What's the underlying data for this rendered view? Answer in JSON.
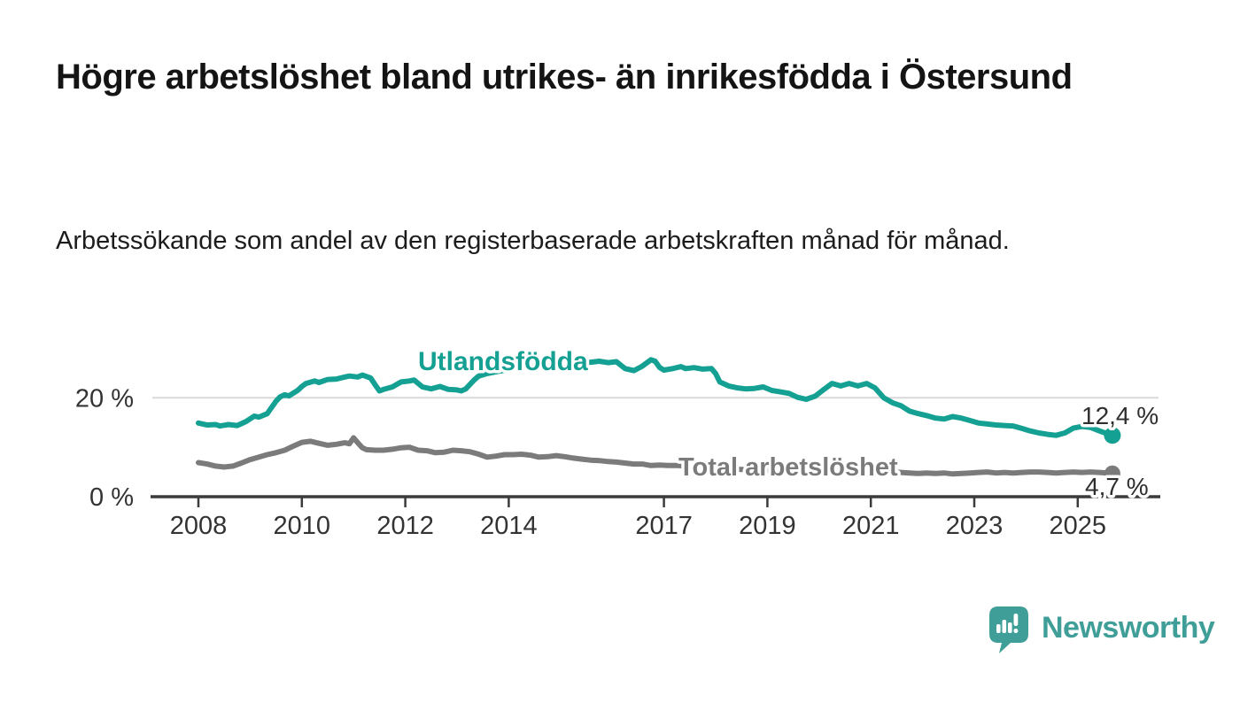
{
  "header": {
    "title": "Högre arbetslöshet bland utrikes- än inrikesfödda i Östersund",
    "subtitle": "Arbetssökande som andel av den registerbaserade arbetskraften månad för månad."
  },
  "branding": {
    "name": "Newsworthy",
    "color": "#3f9e98",
    "icon": "speech-bubble-bar-chart"
  },
  "colors": {
    "series_foreign_born": "#14a092",
    "series_total": "#7b7b7b",
    "axis": "#3b3b3b",
    "grid": "#d9d9d9",
    "tick_label": "#333333",
    "end_label": "#2e2e2e"
  },
  "chart_data": {
    "type": "line",
    "title": "Högre arbetslöshet bland utrikes- än inrikesfödda i Östersund",
    "subtitle": "Arbetssökande som andel av den registerbaserade arbetskraften månad för månad.",
    "unit": "%",
    "grid": "single horizontal gridline at 20 %",
    "legend_position": "inline labels on lines",
    "x_ticks": [
      2008,
      2010,
      2012,
      2014,
      2017,
      2019,
      2021,
      2023,
      2025
    ],
    "x_range": [
      2008.0,
      2025.67
    ],
    "y_ticks": [
      {
        "value": 0,
        "label": "0 %"
      },
      {
        "value": 20,
        "label": "20 %"
      }
    ],
    "y_range": [
      0,
      30
    ],
    "series": [
      {
        "name": "Utlandsfödda",
        "color": "#14a092",
        "end_value": 12.4,
        "end_label": "12,4 %",
        "points": [
          [
            2008.0,
            14.9
          ],
          [
            2008.17,
            14.5
          ],
          [
            2008.33,
            14.6
          ],
          [
            2008.42,
            14.3
          ],
          [
            2008.58,
            14.6
          ],
          [
            2008.75,
            14.4
          ],
          [
            2008.92,
            15.2
          ],
          [
            2009.08,
            16.3
          ],
          [
            2009.17,
            16.1
          ],
          [
            2009.33,
            16.8
          ],
          [
            2009.5,
            19.3
          ],
          [
            2009.58,
            20.2
          ],
          [
            2009.67,
            20.6
          ],
          [
            2009.75,
            20.4
          ],
          [
            2009.92,
            21.5
          ],
          [
            2010.0,
            22.3
          ],
          [
            2010.08,
            22.9
          ],
          [
            2010.25,
            23.4
          ],
          [
            2010.33,
            23.1
          ],
          [
            2010.5,
            23.7
          ],
          [
            2010.67,
            23.8
          ],
          [
            2010.83,
            24.2
          ],
          [
            2010.92,
            24.4
          ],
          [
            2011.08,
            24.2
          ],
          [
            2011.17,
            24.6
          ],
          [
            2011.33,
            24.0
          ],
          [
            2011.42,
            22.6
          ],
          [
            2011.5,
            21.4
          ],
          [
            2011.58,
            21.7
          ],
          [
            2011.75,
            22.2
          ],
          [
            2011.92,
            23.2
          ],
          [
            2012.08,
            23.4
          ],
          [
            2012.17,
            23.6
          ],
          [
            2012.33,
            22.2
          ],
          [
            2012.5,
            21.8
          ],
          [
            2012.67,
            22.3
          ],
          [
            2012.83,
            21.7
          ],
          [
            2013.0,
            21.6
          ],
          [
            2013.08,
            21.4
          ],
          [
            2013.17,
            21.8
          ],
          [
            2013.33,
            23.6
          ],
          [
            2013.42,
            24.4
          ],
          [
            2013.58,
            24.9
          ],
          [
            2013.83,
            25.4
          ],
          [
            2014.08,
            25.9
          ],
          [
            2014.33,
            26.2
          ],
          [
            2014.58,
            26.5
          ],
          [
            2014.83,
            26.7
          ],
          [
            2015.08,
            26.9
          ],
          [
            2015.33,
            27.0
          ],
          [
            2015.58,
            27.2
          ],
          [
            2015.75,
            27.4
          ],
          [
            2015.92,
            27.1
          ],
          [
            2016.08,
            27.3
          ],
          [
            2016.25,
            25.9
          ],
          [
            2016.42,
            25.5
          ],
          [
            2016.58,
            26.4
          ],
          [
            2016.75,
            27.7
          ],
          [
            2016.83,
            27.4
          ],
          [
            2016.92,
            26.1
          ],
          [
            2017.0,
            25.6
          ],
          [
            2017.17,
            25.9
          ],
          [
            2017.33,
            26.3
          ],
          [
            2017.42,
            25.9
          ],
          [
            2017.58,
            26.1
          ],
          [
            2017.75,
            25.8
          ],
          [
            2017.92,
            25.9
          ],
          [
            2018.0,
            24.9
          ],
          [
            2018.08,
            23.2
          ],
          [
            2018.25,
            22.4
          ],
          [
            2018.42,
            22.0
          ],
          [
            2018.58,
            21.8
          ],
          [
            2018.75,
            21.9
          ],
          [
            2018.92,
            22.2
          ],
          [
            2019.08,
            21.5
          ],
          [
            2019.25,
            21.2
          ],
          [
            2019.42,
            20.9
          ],
          [
            2019.58,
            20.1
          ],
          [
            2019.75,
            19.7
          ],
          [
            2019.92,
            20.3
          ],
          [
            2020.08,
            21.6
          ],
          [
            2020.25,
            22.9
          ],
          [
            2020.42,
            22.4
          ],
          [
            2020.58,
            22.9
          ],
          [
            2020.75,
            22.4
          ],
          [
            2020.92,
            22.9
          ],
          [
            2021.08,
            22.0
          ],
          [
            2021.25,
            20.0
          ],
          [
            2021.42,
            19.0
          ],
          [
            2021.58,
            18.4
          ],
          [
            2021.75,
            17.3
          ],
          [
            2021.92,
            16.8
          ],
          [
            2022.08,
            16.4
          ],
          [
            2022.25,
            15.9
          ],
          [
            2022.42,
            15.7
          ],
          [
            2022.58,
            16.2
          ],
          [
            2022.75,
            15.9
          ],
          [
            2022.92,
            15.4
          ],
          [
            2023.08,
            14.9
          ],
          [
            2023.25,
            14.7
          ],
          [
            2023.42,
            14.5
          ],
          [
            2023.58,
            14.4
          ],
          [
            2023.75,
            14.3
          ],
          [
            2023.92,
            13.8
          ],
          [
            2024.08,
            13.3
          ],
          [
            2024.25,
            12.9
          ],
          [
            2024.42,
            12.6
          ],
          [
            2024.58,
            12.4
          ],
          [
            2024.75,
            12.9
          ],
          [
            2024.92,
            13.9
          ],
          [
            2025.08,
            14.2
          ],
          [
            2025.25,
            14.0
          ],
          [
            2025.42,
            13.3
          ],
          [
            2025.58,
            12.7
          ],
          [
            2025.67,
            12.4
          ]
        ]
      },
      {
        "name": "Total arbetslöshet",
        "color": "#7b7b7b",
        "end_value": 4.7,
        "end_label": "4,7 %",
        "points": [
          [
            2008.0,
            6.9
          ],
          [
            2008.17,
            6.6
          ],
          [
            2008.33,
            6.2
          ],
          [
            2008.5,
            6.0
          ],
          [
            2008.67,
            6.2
          ],
          [
            2008.83,
            6.8
          ],
          [
            2009.0,
            7.5
          ],
          [
            2009.17,
            8.0
          ],
          [
            2009.33,
            8.5
          ],
          [
            2009.5,
            8.9
          ],
          [
            2009.67,
            9.4
          ],
          [
            2009.83,
            10.2
          ],
          [
            2010.0,
            11.0
          ],
          [
            2010.17,
            11.2
          ],
          [
            2010.33,
            10.8
          ],
          [
            2010.5,
            10.4
          ],
          [
            2010.67,
            10.6
          ],
          [
            2010.83,
            10.9
          ],
          [
            2010.92,
            10.7
          ],
          [
            2011.0,
            11.9
          ],
          [
            2011.08,
            10.9
          ],
          [
            2011.17,
            9.9
          ],
          [
            2011.25,
            9.5
          ],
          [
            2011.42,
            9.4
          ],
          [
            2011.58,
            9.4
          ],
          [
            2011.75,
            9.6
          ],
          [
            2011.92,
            9.9
          ],
          [
            2012.08,
            10.0
          ],
          [
            2012.25,
            9.4
          ],
          [
            2012.42,
            9.3
          ],
          [
            2012.58,
            8.9
          ],
          [
            2012.75,
            9.0
          ],
          [
            2012.92,
            9.4
          ],
          [
            2013.08,
            9.3
          ],
          [
            2013.25,
            9.1
          ],
          [
            2013.42,
            8.6
          ],
          [
            2013.58,
            8.0
          ],
          [
            2013.75,
            8.2
          ],
          [
            2013.92,
            8.5
          ],
          [
            2014.08,
            8.5
          ],
          [
            2014.25,
            8.6
          ],
          [
            2014.42,
            8.4
          ],
          [
            2014.58,
            8.0
          ],
          [
            2014.75,
            8.1
          ],
          [
            2014.92,
            8.3
          ],
          [
            2015.08,
            8.1
          ],
          [
            2015.25,
            7.8
          ],
          [
            2015.42,
            7.6
          ],
          [
            2015.58,
            7.4
          ],
          [
            2015.75,
            7.3
          ],
          [
            2015.92,
            7.1
          ],
          [
            2016.08,
            7.0
          ],
          [
            2016.25,
            6.8
          ],
          [
            2016.42,
            6.6
          ],
          [
            2016.58,
            6.6
          ],
          [
            2016.75,
            6.3
          ],
          [
            2016.92,
            6.4
          ],
          [
            2017.08,
            6.3
          ],
          [
            2017.25,
            6.3
          ],
          [
            2017.5,
            6.2
          ],
          [
            2017.75,
            6.0
          ],
          [
            2018.0,
            5.8
          ],
          [
            2018.5,
            5.5
          ],
          [
            2019.0,
            5.3
          ],
          [
            2019.5,
            5.1
          ],
          [
            2020.0,
            5.4
          ],
          [
            2020.33,
            6.2
          ],
          [
            2020.67,
            6.0
          ],
          [
            2021.0,
            5.6
          ],
          [
            2021.25,
            5.2
          ],
          [
            2021.42,
            5.0
          ],
          [
            2021.58,
            4.9
          ],
          [
            2021.75,
            4.8
          ],
          [
            2021.92,
            4.7
          ],
          [
            2022.08,
            4.8
          ],
          [
            2022.25,
            4.7
          ],
          [
            2022.42,
            4.8
          ],
          [
            2022.58,
            4.6
          ],
          [
            2022.75,
            4.7
          ],
          [
            2022.92,
            4.8
          ],
          [
            2023.08,
            4.9
          ],
          [
            2023.25,
            5.0
          ],
          [
            2023.42,
            4.8
          ],
          [
            2023.58,
            4.9
          ],
          [
            2023.75,
            4.8
          ],
          [
            2023.92,
            4.9
          ],
          [
            2024.08,
            5.0
          ],
          [
            2024.25,
            5.0
          ],
          [
            2024.42,
            4.9
          ],
          [
            2024.58,
            4.8
          ],
          [
            2024.75,
            4.9
          ],
          [
            2024.92,
            5.0
          ],
          [
            2025.08,
            4.9
          ],
          [
            2025.25,
            5.0
          ],
          [
            2025.42,
            4.9
          ],
          [
            2025.58,
            4.8
          ],
          [
            2025.67,
            4.7
          ]
        ]
      }
    ]
  }
}
